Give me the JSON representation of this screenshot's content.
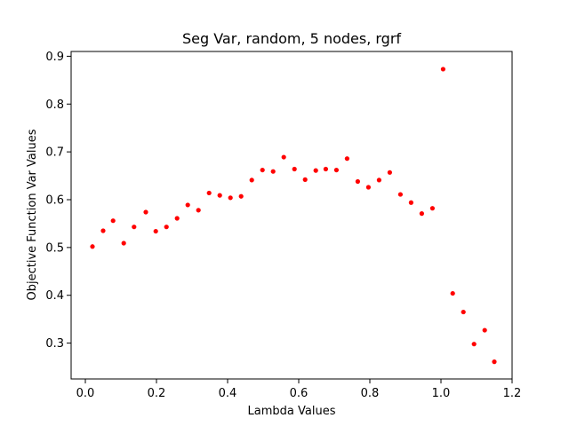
{
  "chart_data": {
    "type": "scatter",
    "title": "Seg Var, random, 5 nodes, rgrf",
    "xlabel": "Lambda Values",
    "ylabel": "Objective Function Var Values",
    "xlim": [
      -0.04,
      1.2
    ],
    "ylim": [
      0.225,
      0.91
    ],
    "xticks": [
      0.0,
      0.2,
      0.4,
      0.6,
      0.8,
      1.0,
      1.2
    ],
    "xtick_labels": [
      "0.0",
      "0.2",
      "0.4",
      "0.6",
      "0.8",
      "1.0",
      "1.2"
    ],
    "yticks": [
      0.3,
      0.4,
      0.5,
      0.6,
      0.7,
      0.8,
      0.9
    ],
    "ytick_labels": [
      "0.3",
      "0.4",
      "0.5",
      "0.6",
      "0.7",
      "0.8",
      "0.9"
    ],
    "grid": false,
    "legend": false,
    "marker_color": "#ff0000",
    "series": [
      {
        "points": [
          [
            0.02,
            0.502
          ],
          [
            0.05,
            0.535
          ],
          [
            0.078,
            0.556
          ],
          [
            0.108,
            0.509
          ],
          [
            0.137,
            0.543
          ],
          [
            0.17,
            0.574
          ],
          [
            0.198,
            0.534
          ],
          [
            0.228,
            0.543
          ],
          [
            0.258,
            0.561
          ],
          [
            0.288,
            0.589
          ],
          [
            0.318,
            0.578
          ],
          [
            0.348,
            0.614
          ],
          [
            0.378,
            0.609
          ],
          [
            0.408,
            0.604
          ],
          [
            0.438,
            0.607
          ],
          [
            0.468,
            0.641
          ],
          [
            0.498,
            0.662
          ],
          [
            0.528,
            0.659
          ],
          [
            0.558,
            0.689
          ],
          [
            0.588,
            0.664
          ],
          [
            0.618,
            0.642
          ],
          [
            0.648,
            0.661
          ],
          [
            0.676,
            0.664
          ],
          [
            0.706,
            0.662
          ],
          [
            0.736,
            0.686
          ],
          [
            0.766,
            0.638
          ],
          [
            0.796,
            0.626
          ],
          [
            0.826,
            0.641
          ],
          [
            0.856,
            0.657
          ],
          [
            0.886,
            0.611
          ],
          [
            0.916,
            0.594
          ],
          [
            0.946,
            0.571
          ],
          [
            0.976,
            0.582
          ],
          [
            1.006,
            0.873
          ],
          [
            1.033,
            0.404
          ],
          [
            1.063,
            0.365
          ],
          [
            1.093,
            0.298
          ],
          [
            1.123,
            0.327
          ],
          [
            1.15,
            0.261
          ]
        ]
      }
    ]
  }
}
